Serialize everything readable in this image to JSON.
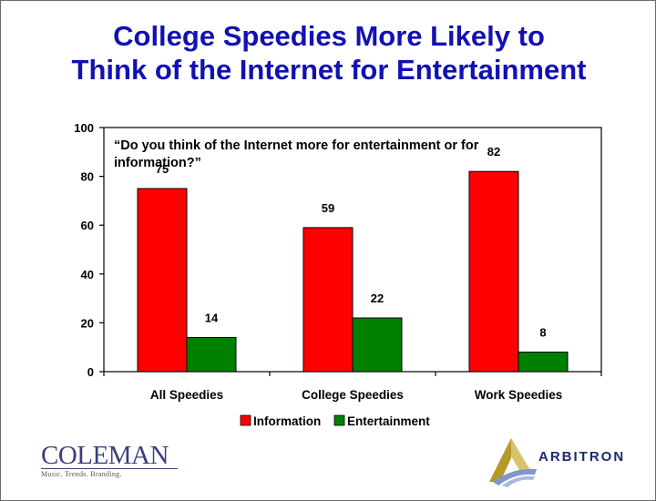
{
  "title": {
    "line1": "College Speedies More Likely to",
    "line2": "Think of the Internet for Entertainment"
  },
  "chart_data": {
    "type": "bar",
    "title": "",
    "annotation": "“Do you think of the Internet more for entertainment or for information?”",
    "annotation_lines": [
      "“Do you think of the Internet more for entertainment or for",
      "information?”"
    ],
    "categories": [
      "All Speedies",
      "College Speedies",
      "Work Speedies"
    ],
    "series": [
      {
        "name": "Information",
        "values": [
          75,
          59,
          82
        ],
        "color": "#ff0000"
      },
      {
        "name": "Entertainment",
        "values": [
          14,
          22,
          8
        ],
        "color": "#008000"
      }
    ],
    "ylim": [
      0,
      100
    ],
    "yticks": [
      0,
      20,
      40,
      60,
      80,
      100
    ],
    "xlabel": "",
    "ylabel": "",
    "grid": false,
    "legend_position": "bottom"
  },
  "logos": {
    "coleman": {
      "name": "COLEMAN",
      "tagline": "Music. Trends. Branding."
    },
    "arbitron": {
      "name": "ARBITRON"
    }
  },
  "colors": {
    "title": "#1111b3",
    "information": "#ff0000",
    "entertainment": "#008000",
    "coleman": "#3b3f7c",
    "arbitron": "#1e2a6e"
  }
}
